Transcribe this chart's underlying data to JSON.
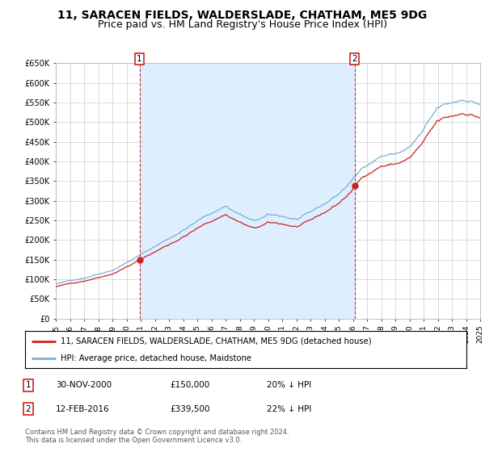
{
  "title": "11, SARACEN FIELDS, WALDERSLADE, CHATHAM, ME5 9DG",
  "subtitle": "Price paid vs. HM Land Registry's House Price Index (HPI)",
  "ylim": [
    0,
    650000
  ],
  "yticks": [
    0,
    50000,
    100000,
    150000,
    200000,
    250000,
    300000,
    350000,
    400000,
    450000,
    500000,
    550000,
    600000,
    650000
  ],
  "ytick_labels": [
    "£0",
    "£50K",
    "£100K",
    "£150K",
    "£200K",
    "£250K",
    "£300K",
    "£350K",
    "£400K",
    "£450K",
    "£500K",
    "£550K",
    "£600K",
    "£650K"
  ],
  "hpi_color": "#7bafd4",
  "price_color": "#cc2222",
  "vline_color": "#cc2222",
  "shade_color": "#ddeeff",
  "background_color": "#ffffff",
  "grid_color": "#cccccc",
  "purchase1_year": 2000.92,
  "purchase1_price": 150000,
  "purchase2_year": 2016.12,
  "purchase2_price": 339500,
  "legend_line1": "11, SARACEN FIELDS, WALDERSLADE, CHATHAM, ME5 9DG (detached house)",
  "legend_line2": "HPI: Average price, detached house, Maidstone",
  "table_data": [
    [
      "1",
      "30-NOV-2000",
      "£150,000",
      "20% ↓ HPI"
    ],
    [
      "2",
      "12-FEB-2016",
      "£339,500",
      "22% ↓ HPI"
    ]
  ],
  "footnote": "Contains HM Land Registry data © Crown copyright and database right 2024.\nThis data is licensed under the Open Government Licence v3.0.",
  "title_fontsize": 10,
  "subtitle_fontsize": 9
}
